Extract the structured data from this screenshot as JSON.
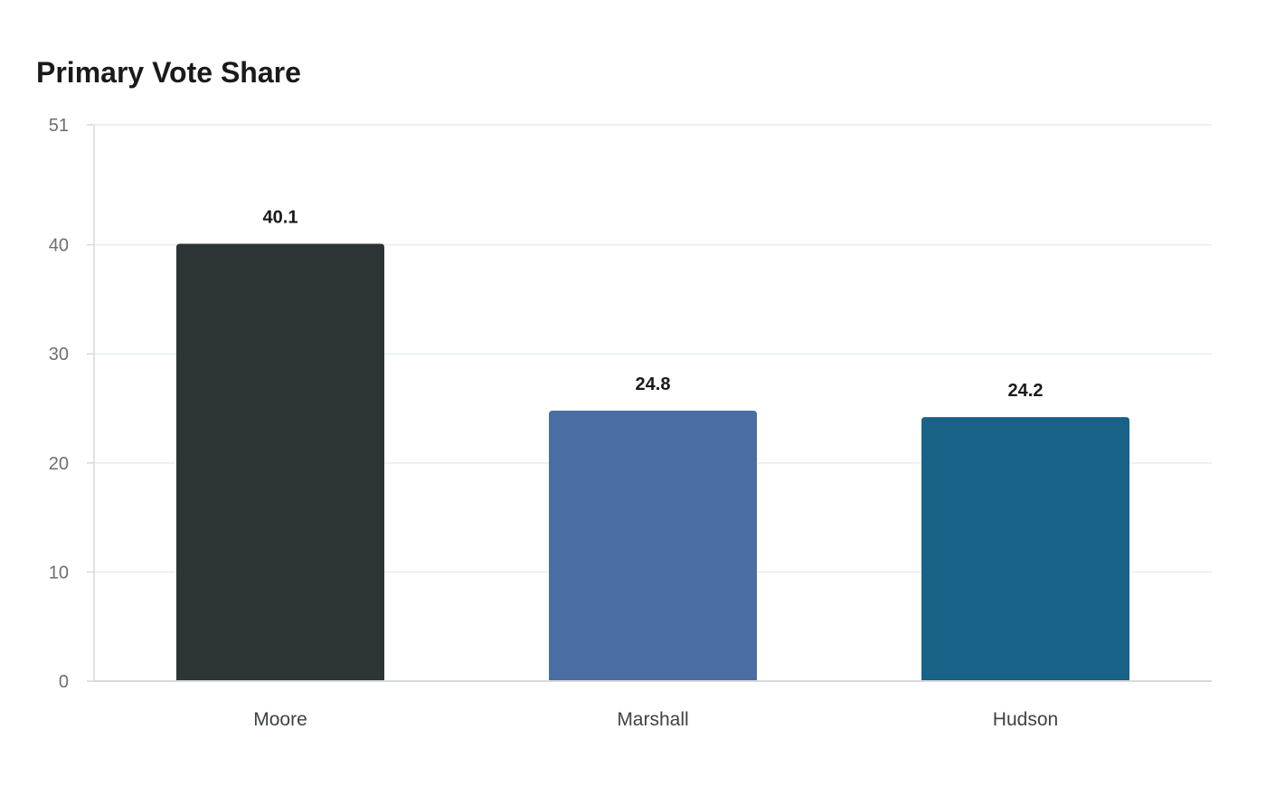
{
  "chart_data": {
    "type": "bar",
    "title": "Primary Vote Share",
    "xlabel": "",
    "ylabel": "",
    "categories": [
      "Moore",
      "Marshall",
      "Hudson"
    ],
    "values": [
      40.1,
      24.8,
      24.2
    ],
    "data_labels": [
      "40.1",
      "24.8",
      "24.2"
    ],
    "colors": [
      "#2d3436",
      "#4a6ea3",
      "#186187"
    ],
    "ylim": [
      0,
      51
    ],
    "yticks": [
      0,
      10,
      20,
      30,
      40,
      51
    ],
    "ytick_labels": [
      "0",
      "10",
      "20",
      "30",
      "40",
      "51"
    ],
    "grid": true,
    "legend": "none"
  }
}
